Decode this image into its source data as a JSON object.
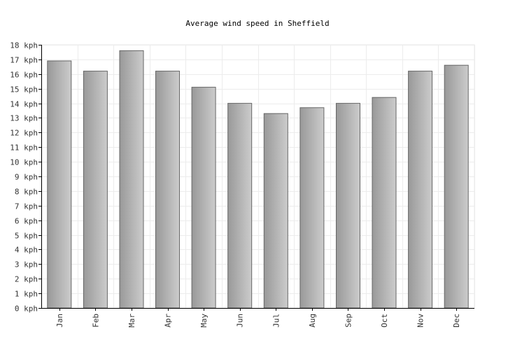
{
  "chart_data": {
    "type": "bar",
    "title": "Average wind speed in Sheffield",
    "xlabel": "",
    "ylabel": "",
    "categories": [
      "Jan",
      "Feb",
      "Mar",
      "Apr",
      "May",
      "Jun",
      "Jul",
      "Aug",
      "Sep",
      "Oct",
      "Nov",
      "Dec"
    ],
    "values": [
      16.9,
      16.2,
      17.6,
      16.2,
      15.1,
      14.0,
      13.3,
      13.7,
      14.0,
      14.4,
      16.2,
      16.6
    ],
    "y_unit": "kph",
    "ylim": [
      0,
      18
    ],
    "y_ticks": [
      "0 kph",
      "1 kph",
      "2 kph",
      "3 kph",
      "4 kph",
      "5 kph",
      "6 kph",
      "7 kph",
      "8 kph",
      "9 kph",
      "10 kph",
      "11 kph",
      "12 kph",
      "13 kph",
      "14 kph",
      "15 kph",
      "16 kph",
      "17 kph",
      "18 kph"
    ],
    "grid": true,
    "legend": "none",
    "colors": {
      "bar_light": "#cccccc",
      "bar_dark": "#999999",
      "bar_border": "#666666",
      "grid": "#ececec",
      "axis": "#000000",
      "plot_border": "#e8e8e8"
    }
  }
}
